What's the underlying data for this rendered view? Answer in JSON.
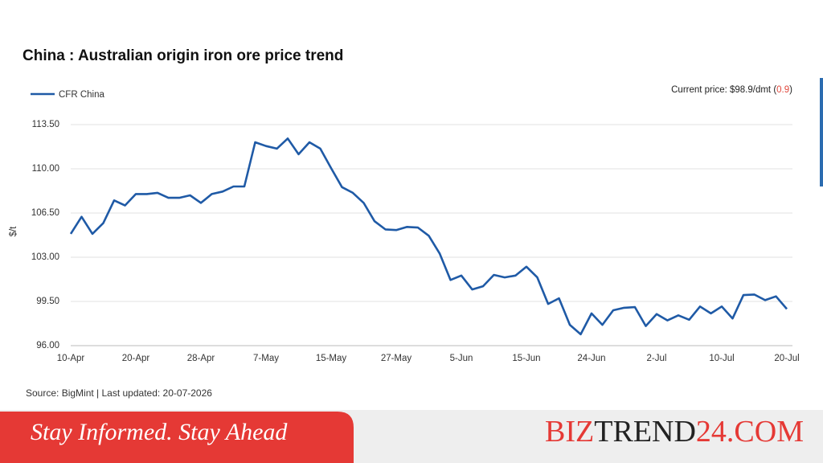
{
  "chart_data": {
    "type": "line",
    "title": "China : Australian origin iron ore price trend",
    "y_label": "$/t",
    "annotation": {
      "prefix": "Current price: $98.9/dmt (",
      "change": "0.9",
      "suffix": ")"
    },
    "source": "Source: BigMint | Last updated: 20-07-2026",
    "categories": [
      "10-Apr",
      null,
      null,
      null,
      null,
      null,
      "20-Apr",
      null,
      null,
      null,
      null,
      null,
      "28-Apr",
      null,
      null,
      null,
      null,
      null,
      "7-May",
      null,
      null,
      null,
      null,
      null,
      "15-May",
      null,
      null,
      null,
      null,
      null,
      "27-May",
      null,
      null,
      null,
      null,
      null,
      "5-Jun",
      null,
      null,
      null,
      null,
      null,
      "15-Jun",
      null,
      null,
      null,
      null,
      null,
      "24-Jun",
      null,
      null,
      null,
      null,
      null,
      "2-Jul",
      null,
      null,
      null,
      null,
      null,
      "10-Jul",
      null,
      null,
      null,
      null,
      null,
      "20-Jul"
    ],
    "series": [
      {
        "name": "CFR China",
        "color": "#1f5aa6",
        "values": [
          104.85,
          106.2,
          104.85,
          105.7,
          107.5,
          107.1,
          108.0,
          108.0,
          108.1,
          107.7,
          107.7,
          107.9,
          107.3,
          108.0,
          108.2,
          108.6,
          108.6,
          112.1,
          111.8,
          111.6,
          112.4,
          111.15,
          112.1,
          111.6,
          110.05,
          108.55,
          108.1,
          107.3,
          105.85,
          105.2,
          105.15,
          105.4,
          105.35,
          104.7,
          103.3,
          101.2,
          101.55,
          100.45,
          100.7,
          101.6,
          101.4,
          101.55,
          102.25,
          101.4,
          99.3,
          99.75,
          97.65,
          96.9,
          98.55,
          97.65,
          98.8,
          99.0,
          99.05,
          97.55,
          98.5,
          98.0,
          98.4,
          98.05,
          99.1,
          98.55,
          99.1,
          98.15,
          100.0,
          100.05,
          99.6,
          99.9,
          98.9
        ]
      }
    ],
    "ylim": [
      96,
      113.5
    ],
    "yticks": [
      {
        "value": 96,
        "label": "96.00"
      },
      {
        "value": 99.5,
        "label": "99.50"
      },
      {
        "value": 103,
        "label": "103.00"
      },
      {
        "value": 106.5,
        "label": "106.50"
      },
      {
        "value": 110,
        "label": "110.00"
      },
      {
        "value": 113.5,
        "label": "113.50"
      }
    ],
    "grid": true,
    "legend": "top-left"
  },
  "banner": {
    "slogan": "Stay Informed. Stay Ahead",
    "brand": [
      "BIZ",
      "TREND",
      "24.COM"
    ]
  }
}
